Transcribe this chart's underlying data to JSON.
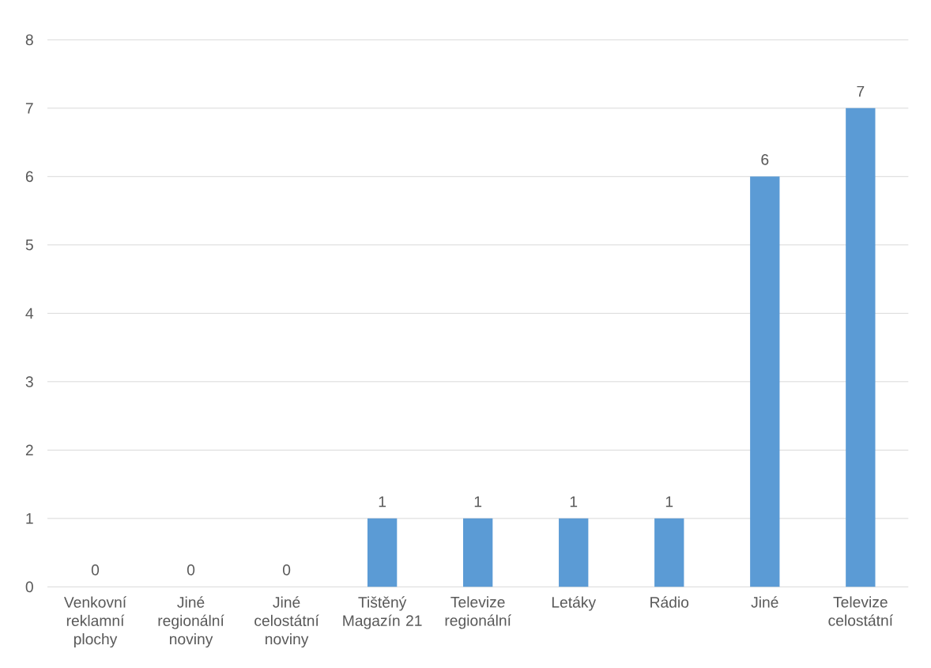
{
  "chart_data": {
    "type": "bar",
    "categories": [
      "Venkovní reklamní plochy",
      "Jiné regionální noviny",
      "Jiné celostátní noviny",
      "Tištěný Magazín 21",
      "Televize regionální",
      "Letáky",
      "Rádio",
      "Jiné",
      "Televize celostátní"
    ],
    "values": [
      0,
      0,
      0,
      1,
      1,
      1,
      1,
      6,
      7
    ],
    "color": "#5b9bd5",
    "ylim": [
      0,
      8
    ],
    "yticks": [
      0,
      1,
      2,
      3,
      4,
      5,
      6,
      7,
      8
    ],
    "grid": "y",
    "data_labels": true
  }
}
